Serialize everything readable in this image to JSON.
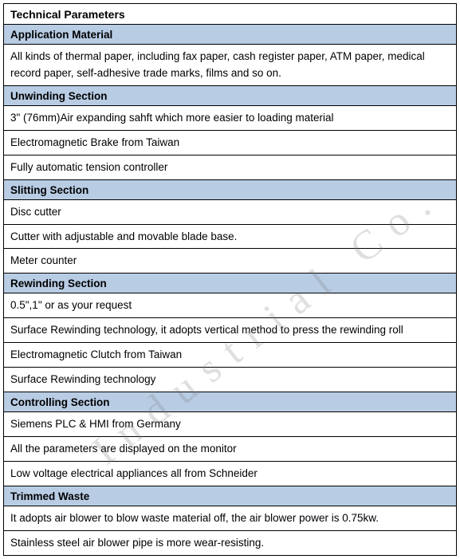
{
  "title": "Technical Parameters",
  "watermark_text": "Industrial Co.",
  "header_bg": "#b8cce4",
  "sections": [
    {
      "header": "Application Material",
      "rows": [
        "All kinds of thermal paper, including fax paper, cash register paper, ATM paper, medical record paper, self-adhesive trade marks, films and so on."
      ]
    },
    {
      "header": "Unwinding Section",
      "rows": [
        "3\" (76mm)Air expanding sahft which more easier to loading material",
        "Electromagnetic Brake from Taiwan",
        "Fully automatic tension controller"
      ]
    },
    {
      "header": "Slitting Section",
      "rows": [
        "Disc cutter",
        "Cutter with adjustable and movable blade base.",
        "Meter counter"
      ]
    },
    {
      "header": "Rewinding Section",
      "rows": [
        "0.5\",1\" or as your request",
        "Surface Rewinding technology, it adopts vertical method to press the rewinding roll",
        "Electromagnetic Clutch from Taiwan",
        "Surface Rewinding technology"
      ]
    },
    {
      "header": "Controlling Section",
      "rows": [
        "Siemens PLC & HMI from Germany",
        "All the parameters are displayed on the monitor",
        "Low voltage electrical appliances all from Schneider"
      ]
    },
    {
      "header": "Trimmed Waste",
      "rows": [
        "It adopts air blower to blow waste material off, the air blower power is 0.75kw.",
        "Stainless steel air blower pipe is more wear-resisting."
      ]
    }
  ]
}
